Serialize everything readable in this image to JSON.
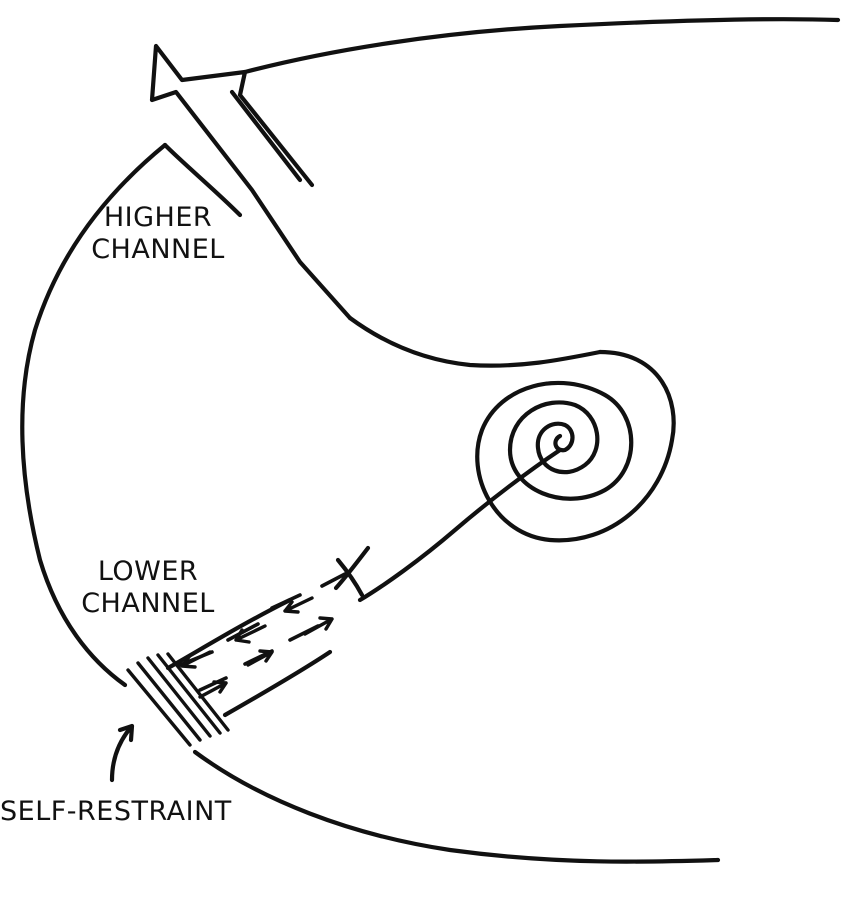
{
  "labels": {
    "higher_channel": [
      "HIGHER",
      "CHANNEL"
    ],
    "lower_channel": [
      "LOWER",
      "CHANNEL"
    ],
    "self_restraint": "SELF-RESTRAINT"
  },
  "colors": {
    "ink": "#111111",
    "background": "#ffffff"
  }
}
